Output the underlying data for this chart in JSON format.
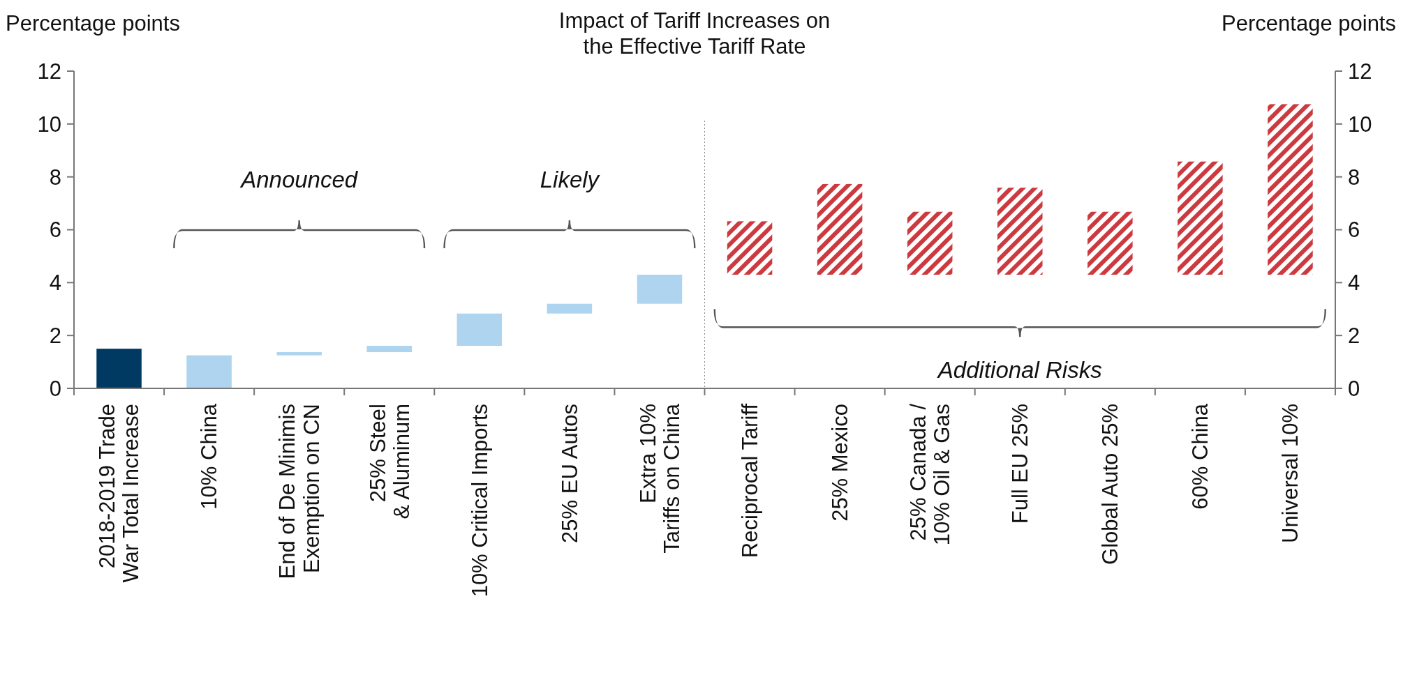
{
  "chart_data": {
    "type": "bar",
    "title": "Impact of Tariff Increases on the Effective Tariff Rate",
    "ylabel": "Percentage points",
    "y2label": "Percentage points",
    "categories": [
      "2018-2019 Trade\nWar Total Increase",
      "10% China",
      "End of De Minimis\nExemption on CN",
      "25% Steel\n& Aluminum",
      "10% Critical Imports",
      "25% EU Autos",
      "Extra 10%\nTariffs on China",
      "Reciprocal Tariff",
      "25% Mexico",
      "25% Canada /\n10% Oil & Gas",
      "Full EU 25%",
      "Global Auto 25%",
      "60% China",
      "Universal 10%"
    ],
    "series": [
      {
        "colors": [
          "#003a63",
          "#aed4f0",
          "#aed4f0",
          "#aed4f0",
          "#aed4f0",
          "#aed4f0",
          "#aed4f0",
          null,
          null,
          null,
          null,
          null,
          null,
          null
        ],
        "base": [
          0,
          0,
          1.25,
          1.37,
          1.61,
          2.83,
          3.2,
          null,
          null,
          null,
          null,
          null,
          null,
          null
        ],
        "values": [
          1.5,
          1.25,
          0.12,
          0.24,
          1.22,
          0.37,
          1.1,
          null,
          null,
          null,
          null,
          null,
          null,
          null
        ]
      },
      {
        "color": "#cc3a3f",
        "base": [
          null,
          null,
          null,
          null,
          null,
          null,
          null,
          4.3,
          4.3,
          4.3,
          4.3,
          4.3,
          4.3,
          4.3
        ],
        "values": [
          null,
          null,
          null,
          null,
          null,
          null,
          null,
          2.02,
          3.43,
          2.38,
          3.29,
          2.38,
          4.28,
          6.45
        ]
      }
    ],
    "annotations": [
      "Announced",
      "Likely",
      "Additional Risks"
    ],
    "ylim": [
      0,
      12
    ],
    "yticks": [
      0,
      2,
      4,
      6,
      8,
      10,
      12
    ],
    "y2lim": [
      0,
      12
    ],
    "y2ticks": [
      0,
      2,
      4,
      6,
      8,
      10,
      12
    ],
    "grid": false
  }
}
